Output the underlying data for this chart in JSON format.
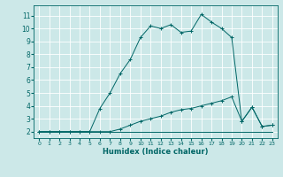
{
  "xlabel": "Humidex (Indice chaleur)",
  "bg_color": "#cce8e8",
  "line_color": "#006666",
  "grid_color": "#ffffff",
  "xlim": [
    -0.5,
    23.5
  ],
  "ylim": [
    1.5,
    11.8
  ],
  "xticks": [
    0,
    1,
    2,
    3,
    4,
    5,
    6,
    7,
    8,
    9,
    10,
    11,
    12,
    13,
    14,
    15,
    16,
    17,
    18,
    19,
    20,
    21,
    22,
    23
  ],
  "yticks": [
    2,
    3,
    4,
    5,
    6,
    7,
    8,
    9,
    10,
    11
  ],
  "line1_x": [
    0,
    1,
    2,
    3,
    4,
    5,
    6,
    7,
    8,
    9,
    10,
    11,
    12,
    13,
    14,
    15,
    16,
    17,
    18,
    19,
    20,
    21,
    22,
    23
  ],
  "line1_y": [
    2,
    2,
    2,
    2,
    2,
    2,
    2,
    2,
    2,
    2,
    2,
    2,
    2,
    2,
    2,
    2,
    2,
    2,
    2,
    2,
    2,
    2,
    2,
    2
  ],
  "line2_x": [
    0,
    1,
    2,
    3,
    4,
    5,
    6,
    7,
    8,
    9,
    10,
    11,
    12,
    13,
    14,
    15,
    16,
    17,
    18,
    19,
    20,
    21,
    22,
    23
  ],
  "line2_y": [
    2,
    2,
    2,
    2,
    2,
    2,
    2,
    2,
    2.2,
    2.5,
    2.8,
    3.0,
    3.2,
    3.5,
    3.7,
    3.8,
    4.0,
    4.2,
    4.4,
    4.7,
    2.8,
    3.9,
    2.4,
    2.5
  ],
  "line3_x": [
    0,
    1,
    2,
    3,
    4,
    5,
    6,
    7,
    8,
    9,
    10,
    11,
    12,
    13,
    14,
    15,
    16,
    17,
    18,
    19,
    20,
    21,
    22,
    23
  ],
  "line3_y": [
    2,
    2,
    2,
    2,
    2,
    2,
    3.8,
    5.0,
    6.5,
    7.6,
    9.3,
    10.2,
    10.0,
    10.3,
    9.7,
    9.8,
    11.1,
    10.5,
    10.0,
    9.3,
    2.8,
    3.9,
    2.4,
    2.5
  ]
}
